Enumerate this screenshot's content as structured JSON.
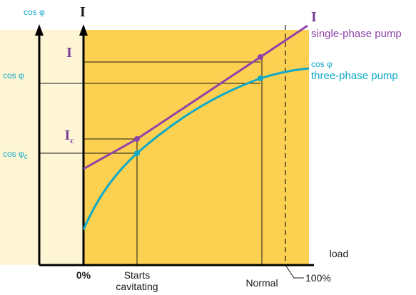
{
  "chart_data": {
    "type": "line",
    "title": "",
    "xlabel": "load",
    "x_tick_labels": {
      "zero": "0%",
      "starts_cavitating": [
        "Starts",
        "cavitating"
      ],
      "normal": "Normal",
      "hundred": "100%"
    },
    "left_axis_title": "cos φ",
    "inner_axis_title": "I",
    "y_labels": {
      "current": "I",
      "current_sub": "I",
      "current_sub_index": "c",
      "cosphi": "cos φ",
      "cosphi_c": "cos φ",
      "cosphi_c_index": "c"
    },
    "series": [
      {
        "name": "single-phase pump",
        "legend_symbol": "I",
        "color": "#8e44a8",
        "x": [
          0,
          0.24,
          0.8,
          1.0
        ],
        "y": [
          0.3,
          0.48,
          0.82,
          0.96
        ]
      },
      {
        "name": "three-phase pump",
        "legend_symbol": "cos φ",
        "color": "#0fa9c8",
        "x": [
          0,
          0.24,
          0.8,
          1.0
        ],
        "y": [
          0.1,
          0.41,
          0.75,
          0.79
        ]
      }
    ],
    "colors": {
      "plot_bg": "#fcd050",
      "left_band": "#fdf5d4"
    }
  }
}
